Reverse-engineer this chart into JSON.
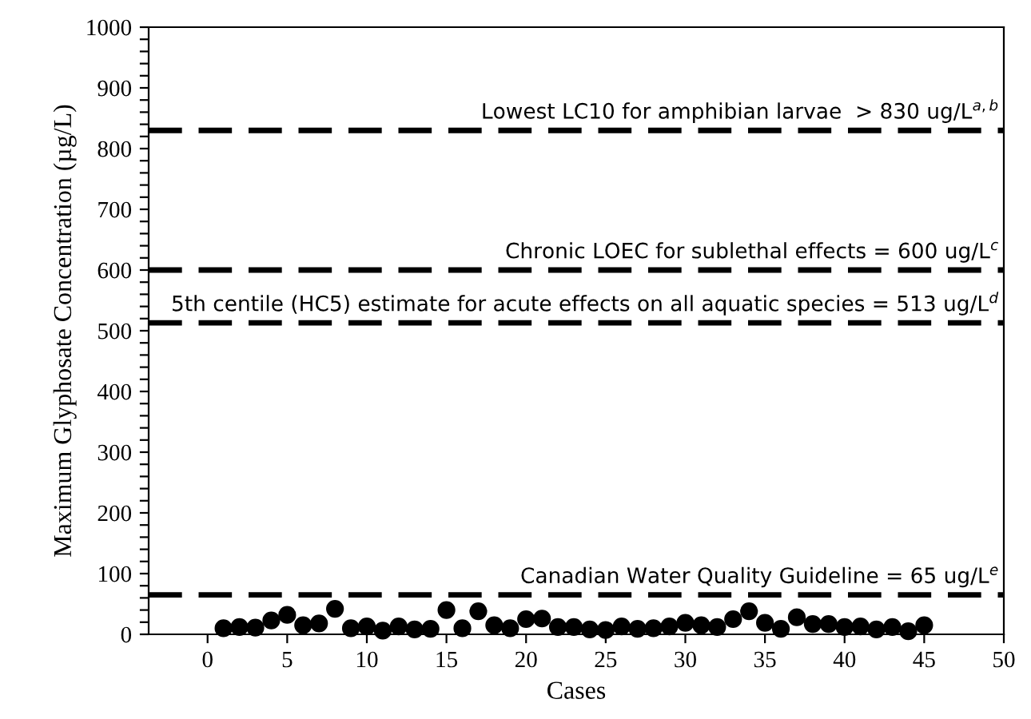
{
  "chart_data": {
    "type": "scatter",
    "xlabel": "Cases",
    "ylabel": "Maximum Glyphosate Concentration (µg/L)",
    "x": [
      1,
      2,
      3,
      4,
      5,
      6,
      7,
      8,
      9,
      10,
      11,
      12,
      13,
      14,
      15,
      16,
      17,
      18,
      19,
      20,
      21,
      22,
      23,
      24,
      25,
      26,
      27,
      28,
      29,
      30,
      31,
      32,
      33,
      34,
      35,
      36,
      37,
      38,
      39,
      40,
      41,
      42,
      43,
      44,
      45
    ],
    "series": [
      {
        "color": "#000000",
        "values": [
          10,
          12,
          11,
          23,
          32,
          15,
          18,
          42,
          10,
          13,
          6,
          13,
          8,
          9,
          40,
          10,
          38,
          15,
          10,
          25,
          26,
          12,
          12,
          8,
          7,
          13,
          9,
          10,
          13,
          19,
          15,
          12,
          25,
          38,
          19,
          9,
          28,
          17,
          17,
          12,
          13,
          8,
          12,
          5,
          15
        ]
      }
    ],
    "marker": "circle",
    "grid": false,
    "legend": false,
    "xlim": [
      -3.7,
      50
    ],
    "xticks": [
      0,
      5,
      10,
      15,
      20,
      25,
      30,
      35,
      40,
      45,
      50
    ],
    "ylim": [
      0,
      1000
    ],
    "yticks": [
      0,
      {
        "value": 20,
        "label": null
      },
      {
        "value": 40,
        "label": null
      },
      {
        "value": 60,
        "label": null
      },
      {
        "value": 80,
        "label": null
      },
      100,
      {
        "value": 120,
        "label": null
      },
      {
        "value": 140,
        "label": null
      },
      {
        "value": 160,
        "label": null
      },
      {
        "value": 180,
        "label": null
      },
      200,
      {
        "value": 220,
        "label": null
      },
      {
        "value": 240,
        "label": null
      },
      {
        "value": 260,
        "label": null
      },
      {
        "value": 280,
        "label": null
      },
      300,
      {
        "value": 320,
        "label": null
      },
      {
        "value": 340,
        "label": null
      },
      {
        "value": 360,
        "label": null
      },
      {
        "value": 380,
        "label": null
      },
      400,
      {
        "value": 420,
        "label": null
      },
      {
        "value": 440,
        "label": null
      },
      {
        "value": 460,
        "label": null
      },
      {
        "value": 480,
        "label": null
      },
      500,
      {
        "value": 520,
        "label": null
      },
      {
        "value": 540,
        "label": null
      },
      {
        "value": 560,
        "label": null
      },
      {
        "value": 580,
        "label": null
      },
      600,
      {
        "value": 620,
        "label": null
      },
      {
        "value": 640,
        "label": null
      },
      {
        "value": 660,
        "label": null
      },
      {
        "value": 680,
        "label": null
      },
      700,
      {
        "value": 720,
        "label": null
      },
      {
        "value": 740,
        "label": null
      },
      {
        "value": 760,
        "label": null
      },
      {
        "value": 780,
        "label": null
      },
      800,
      {
        "value": 820,
        "label": null
      },
      {
        "value": 840,
        "label": null
      },
      {
        "value": 860,
        "label": null
      },
      {
        "value": 880,
        "label": null
      },
      900,
      {
        "value": 920,
        "label": null
      },
      {
        "value": 940,
        "label": null
      },
      {
        "value": 960,
        "label": null
      },
      {
        "value": 980,
        "label": null
      },
      1000
    ],
    "ref_lines": [
      {
        "axis": "y",
        "value": 830,
        "label": "Lowest LC10 for amphibian larvae  > 830 ug/L$^{a,b}$",
        "color": "#000000",
        "line_style": "dashed"
      },
      {
        "axis": "y",
        "value": 600,
        "label": "Chronic LOEC for sublethal effects = 600 ug/L$^{c}$",
        "color": "#000000",
        "line_style": "dashed"
      },
      {
        "axis": "y",
        "value": 513,
        "label": "5th centile (HC5) estimate for acute effects on all aquatic species = 513 ug/L$^{d}$",
        "color": "#000000",
        "line_style": "dashed"
      },
      {
        "axis": "y",
        "value": 65,
        "label": "Canadian Water Quality Guideline = 65 ug/L$^{e}$",
        "color": "#000000",
        "line_style": "dashed"
      }
    ]
  }
}
